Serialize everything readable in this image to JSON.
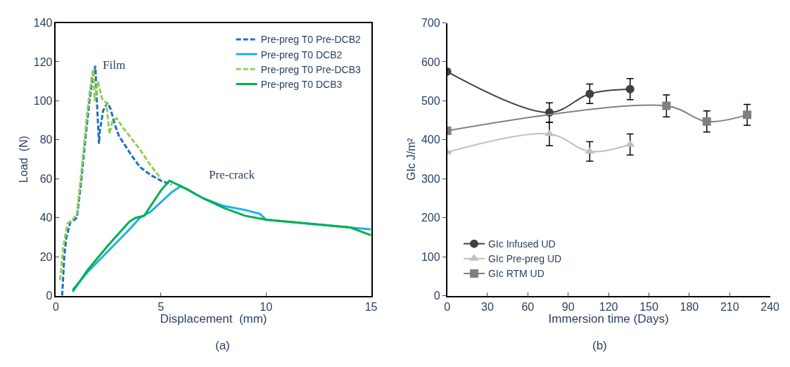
{
  "chart_data": [
    {
      "type": "line",
      "xlabel": "Displacement  (mm)",
      "ylabel": "Load  (N)",
      "xlim": [
        0,
        15
      ],
      "xticks": [
        0,
        5,
        10,
        15
      ],
      "ylim": [
        0,
        140
      ],
      "yticks": [
        0,
        20,
        40,
        60,
        80,
        100,
        120,
        140
      ],
      "legend": "top right",
      "marker": "none",
      "annotations": [
        "Film",
        "Pre-crack",
        "(a)"
      ],
      "series": [
        {
          "name": "Pre-preg T0 Pre-DCB2",
          "color": "#1f6fc0",
          "line_style": "dashed",
          "x": [
            0.3,
            0.4,
            0.5,
            0.7,
            0.9,
            1.0,
            1.2,
            1.4,
            1.6,
            1.75,
            1.88,
            1.95,
            2.05,
            2.1,
            2.25,
            2.45,
            2.6,
            2.8,
            3.0,
            3.3,
            3.6,
            4.0,
            4.5,
            5.0,
            5.5
          ],
          "values": [
            0,
            20,
            30,
            38,
            39,
            40,
            58,
            80,
            100,
            112,
            118,
            100,
            78,
            85,
            95,
            99,
            96,
            88,
            82,
            77,
            72,
            66,
            62,
            59,
            57
          ]
        },
        {
          "name": "Pre-preg T0 DCB2",
          "color": "#1ab0ec",
          "line_style": "solid",
          "x": [
            0.8,
            1.5,
            2.5,
            3.5,
            4.0,
            4.5,
            5.0,
            5.5,
            5.9,
            6.2,
            7.0,
            8.0,
            9.0,
            9.7,
            10.0,
            11.0,
            12.0,
            13.0,
            14.0,
            15.0
          ],
          "values": [
            3,
            12,
            23,
            34,
            40,
            43,
            48,
            53,
            56,
            55,
            50,
            46,
            44,
            42,
            39,
            38,
            37,
            36,
            35,
            34
          ]
        },
        {
          "name": "Pre-preg T0 Pre-DCB3",
          "color": "#92d050",
          "line_style": "dashed",
          "x": [
            0.2,
            0.35,
            0.55,
            0.8,
            1.0,
            1.2,
            1.5,
            1.7,
            1.78,
            1.85,
            2.0,
            2.2,
            2.4,
            2.55,
            2.7,
            2.9,
            3.2,
            3.5,
            4.0,
            4.5,
            5.0
          ],
          "values": [
            8,
            25,
            37,
            39,
            42,
            62,
            95,
            112,
            116,
            100,
            110,
            101,
            99,
            83,
            90,
            91,
            86,
            82,
            75,
            67,
            60
          ]
        },
        {
          "name": "Pre-preg T0 DCB3",
          "color": "#00b050",
          "line_style": "solid",
          "x": [
            0.8,
            1.5,
            2.5,
            3.5,
            3.8,
            4.2,
            5.0,
            5.4,
            6.0,
            7.0,
            8.0,
            9.0,
            10.0,
            11.0,
            12.0,
            13.0,
            14.0,
            15.0
          ],
          "values": [
            2,
            13,
            26,
            38,
            40,
            41,
            54,
            59,
            56,
            50,
            45,
            41,
            39,
            38,
            37,
            36,
            35,
            31
          ]
        }
      ]
    },
    {
      "type": "line",
      "xlabel": "Immersion time (Days)",
      "ylabel": "GIc J/m²",
      "xlim": [
        0,
        240
      ],
      "xticks": [
        0,
        30,
        60,
        90,
        120,
        150,
        180,
        210,
        240
      ],
      "ylim": [
        0,
        700
      ],
      "yticks": [
        0,
        100,
        200,
        300,
        400,
        500,
        600,
        700
      ],
      "legend": "bottom left",
      "annotations": [
        "(b)"
      ],
      "series": [
        {
          "name": "GIc Infused UD",
          "color": "#404040",
          "marker": "circle",
          "x": [
            0,
            76,
            106,
            136
          ],
          "values": [
            575,
            470,
            518,
            530
          ],
          "errors": [
            null,
            25,
            25,
            27
          ]
        },
        {
          "name": "GIc Pre-preg UD",
          "color": "#bfbfbf",
          "marker": "triangle",
          "x": [
            0,
            76,
            106,
            136
          ],
          "values": [
            368,
            415,
            370,
            388
          ],
          "errors": [
            null,
            30,
            25,
            27
          ]
        },
        {
          "name": "GIc RTM UD",
          "color": "#808080",
          "marker": "square",
          "x": [
            0,
            163,
            193,
            223
          ],
          "values": [
            423,
            487,
            447,
            464
          ],
          "errors": [
            null,
            28,
            27,
            27
          ]
        }
      ]
    }
  ]
}
